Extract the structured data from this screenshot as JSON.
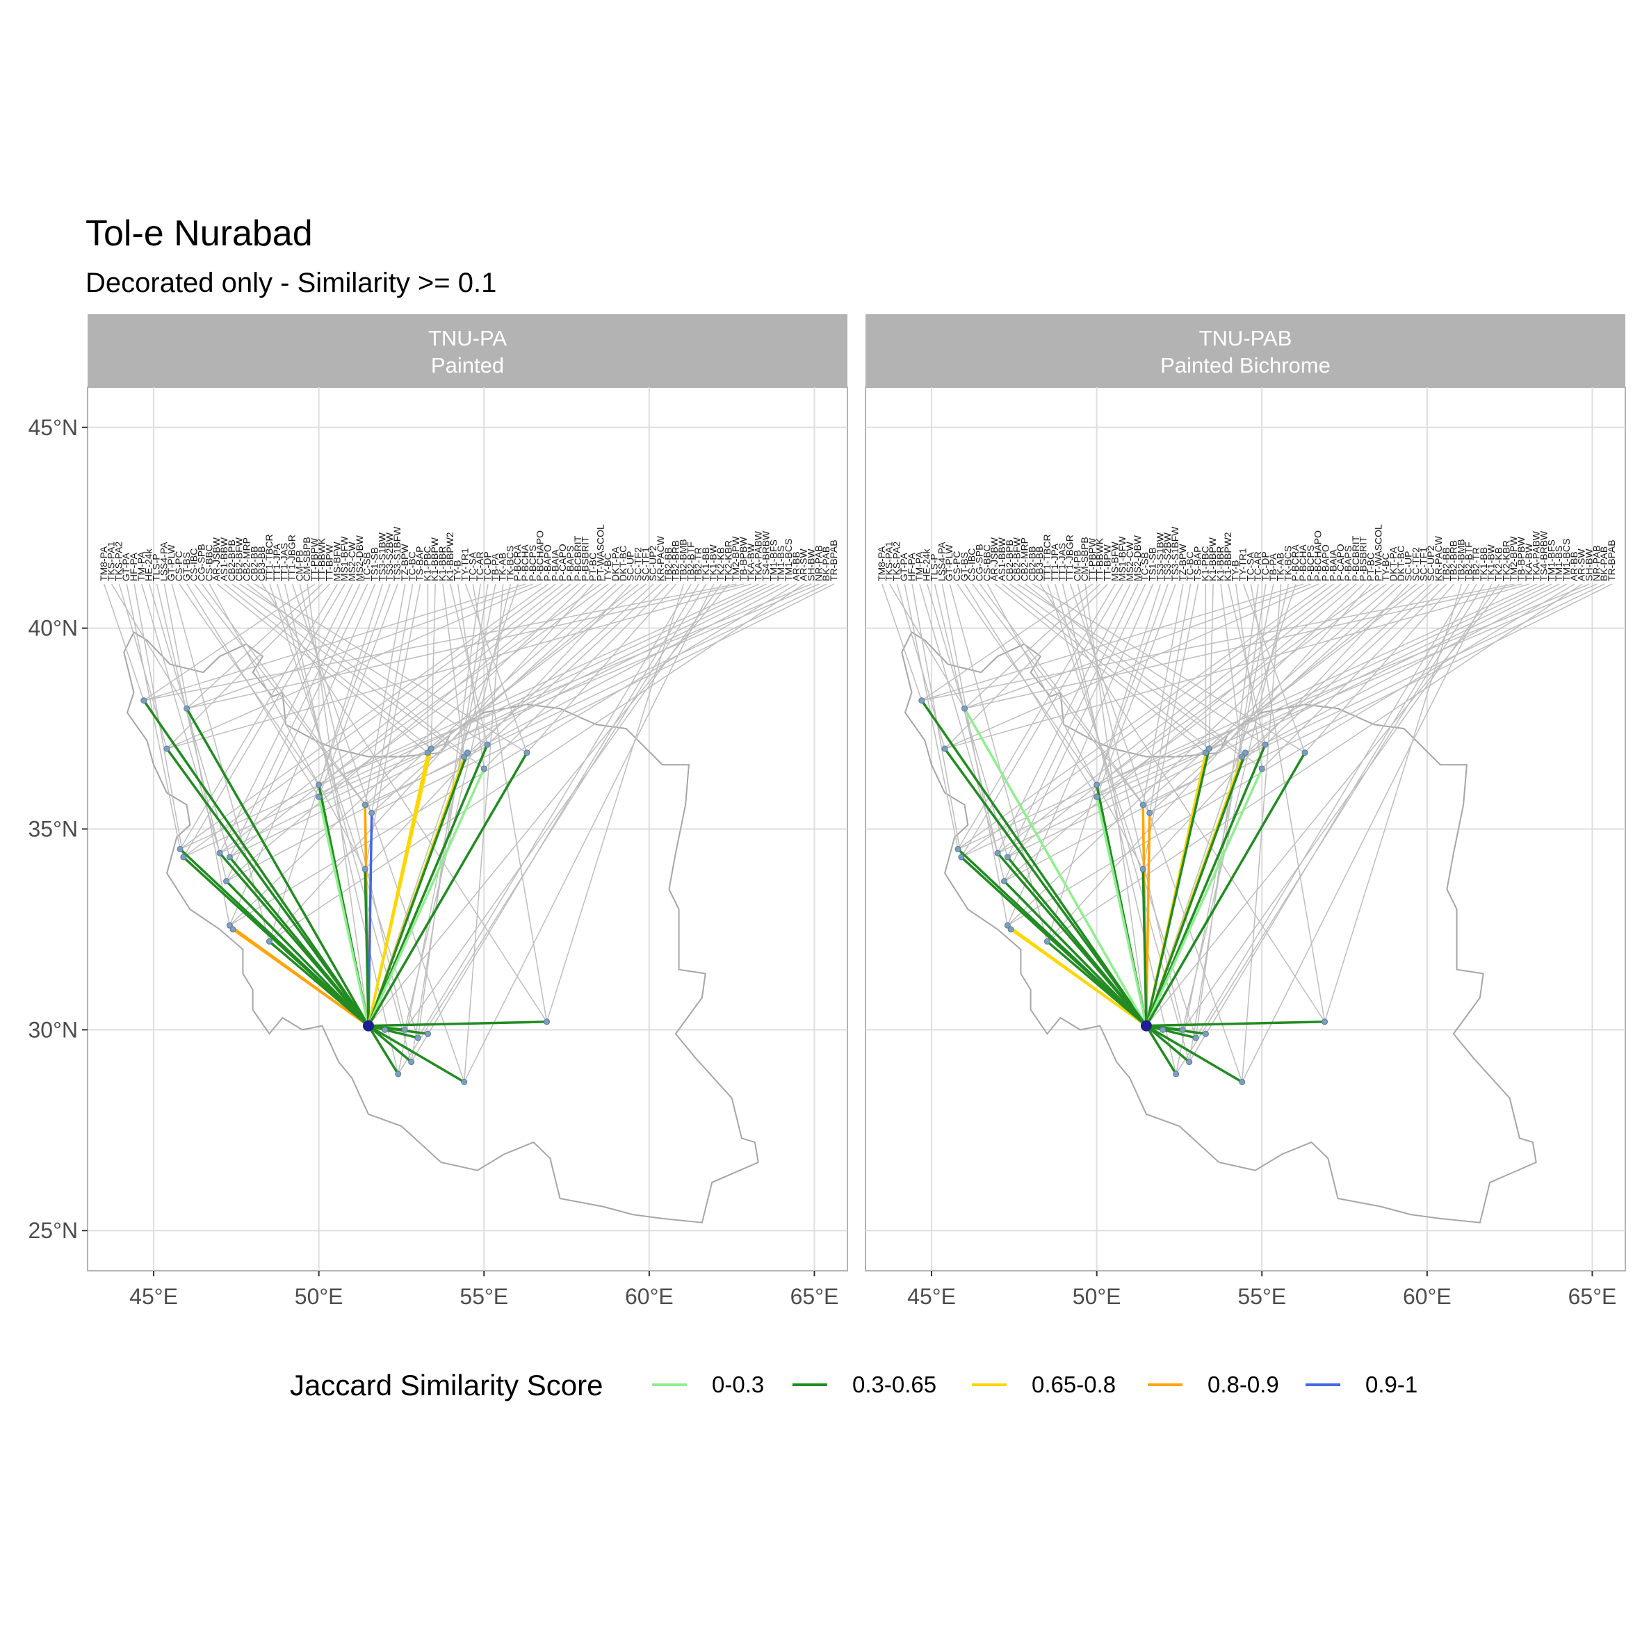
{
  "chart_data": {
    "type": "map-network",
    "title": "Tol-e Nurabad",
    "subtitle": "Decorated only - Similarity >= 0.1",
    "xlabel": "",
    "ylabel": "",
    "xlim": [
      43,
      66
    ],
    "ylim": [
      24,
      46
    ],
    "x_ticks": [
      45,
      50,
      55,
      60,
      65
    ],
    "x_tick_labels": [
      "45°E",
      "50°E",
      "55°E",
      "60°E",
      "65°E"
    ],
    "y_ticks": [
      25,
      30,
      35,
      40,
      45
    ],
    "y_tick_labels": [
      "25°N",
      "30°N",
      "35°N",
      "40°N",
      "45°N"
    ],
    "grid": true,
    "focal_site": {
      "lon": 51.5,
      "lat": 30.1
    },
    "legend": {
      "title": "Jaccard Similarity Score",
      "position": "bottom",
      "entries": [
        {
          "label": "0-0.3",
          "color": "#90EE90"
        },
        {
          "label": "0.3-0.65",
          "color": "#228B22"
        },
        {
          "label": "0.65-0.8",
          "color": "#FFD700"
        },
        {
          "label": "0.8-0.9",
          "color": "#FFA500"
        },
        {
          "label": "0.9-1",
          "color": "#4169E1"
        }
      ]
    },
    "label_line_color": "#bebebe",
    "panels": [
      {
        "strip_line1": "TNU-PA",
        "strip_line2": "Painted",
        "links": [
          {
            "lon": 44.7,
            "lat": 38.2,
            "cat": "0.3-0.65"
          },
          {
            "lon": 46.0,
            "lat": 38.0,
            "cat": "0.3-0.65"
          },
          {
            "lon": 45.4,
            "lat": 37.0,
            "cat": "0.3-0.65"
          },
          {
            "lon": 45.8,
            "lat": 34.5,
            "cat": "0.3-0.65"
          },
          {
            "lon": 45.9,
            "lat": 34.3,
            "cat": "0.3-0.65"
          },
          {
            "lon": 47.0,
            "lat": 34.4,
            "cat": "0.3-0.65"
          },
          {
            "lon": 47.3,
            "lat": 34.3,
            "cat": "0.3-0.65"
          },
          {
            "lon": 47.2,
            "lat": 33.7,
            "cat": "0.3-0.65"
          },
          {
            "lon": 47.3,
            "lat": 32.6,
            "cat": "0.8-0.9"
          },
          {
            "lon": 47.4,
            "lat": 32.5,
            "cat": "0.8-0.9"
          },
          {
            "lon": 48.5,
            "lat": 32.2,
            "cat": "0.3-0.65"
          },
          {
            "lon": 50.0,
            "lat": 36.1,
            "cat": "0.3-0.65"
          },
          {
            "lon": 50.0,
            "lat": 35.8,
            "cat": "0-0.3"
          },
          {
            "lon": 51.4,
            "lat": 35.6,
            "cat": "0.8-0.9"
          },
          {
            "lon": 51.6,
            "lat": 35.4,
            "cat": "0.9-1"
          },
          {
            "lon": 51.4,
            "lat": 34.0,
            "cat": "0.3-0.65"
          },
          {
            "lon": 53.3,
            "lat": 36.9,
            "cat": "0.65-0.8"
          },
          {
            "lon": 53.4,
            "lat": 37.0,
            "cat": "0.65-0.8"
          },
          {
            "lon": 54.4,
            "lat": 36.8,
            "cat": "0.65-0.8"
          },
          {
            "lon": 54.5,
            "lat": 36.9,
            "cat": "0.3-0.65"
          },
          {
            "lon": 55.1,
            "lat": 37.1,
            "cat": "0.3-0.65"
          },
          {
            "lon": 55.0,
            "lat": 36.5,
            "cat": "0-0.3"
          },
          {
            "lon": 56.3,
            "lat": 36.9,
            "cat": "0.3-0.65"
          },
          {
            "lon": 56.9,
            "lat": 30.2,
            "cat": "0.3-0.65"
          },
          {
            "lon": 53.0,
            "lat": 29.8,
            "cat": "0.3-0.65"
          },
          {
            "lon": 53.3,
            "lat": 29.9,
            "cat": "0.3-0.65"
          },
          {
            "lon": 52.8,
            "lat": 29.2,
            "cat": "0.3-0.65"
          },
          {
            "lon": 52.4,
            "lat": 28.9,
            "cat": "0.3-0.65"
          },
          {
            "lon": 54.4,
            "lat": 28.7,
            "cat": "0.3-0.65"
          },
          {
            "lon": 52.0,
            "lat": 30.0,
            "cat": "0.3-0.65"
          },
          {
            "lon": 52.6,
            "lat": 30.0,
            "cat": "0.3-0.65"
          }
        ]
      },
      {
        "strip_line1": "TNU-PAB",
        "strip_line2": "Painted Bichrome",
        "links": [
          {
            "lon": 44.7,
            "lat": 38.2,
            "cat": "0.3-0.65"
          },
          {
            "lon": 46.0,
            "lat": 38.0,
            "cat": "0-0.3"
          },
          {
            "lon": 45.4,
            "lat": 37.0,
            "cat": "0.3-0.65"
          },
          {
            "lon": 45.8,
            "lat": 34.5,
            "cat": "0.3-0.65"
          },
          {
            "lon": 45.9,
            "lat": 34.3,
            "cat": "0.3-0.65"
          },
          {
            "lon": 47.0,
            "lat": 34.4,
            "cat": "0.3-0.65"
          },
          {
            "lon": 47.3,
            "lat": 34.3,
            "cat": "0.3-0.65"
          },
          {
            "lon": 47.2,
            "lat": 33.7,
            "cat": "0.3-0.65"
          },
          {
            "lon": 47.3,
            "lat": 32.6,
            "cat": "0.65-0.8"
          },
          {
            "lon": 47.4,
            "lat": 32.5,
            "cat": "0.65-0.8"
          },
          {
            "lon": 48.5,
            "lat": 32.2,
            "cat": "0.3-0.65"
          },
          {
            "lon": 50.0,
            "lat": 36.1,
            "cat": "0.3-0.65"
          },
          {
            "lon": 50.0,
            "lat": 35.8,
            "cat": "0-0.3"
          },
          {
            "lon": 51.4,
            "lat": 35.6,
            "cat": "0.8-0.9"
          },
          {
            "lon": 51.6,
            "lat": 35.4,
            "cat": "0.8-0.9"
          },
          {
            "lon": 51.4,
            "lat": 34.0,
            "cat": "0.3-0.65"
          },
          {
            "lon": 53.3,
            "lat": 36.9,
            "cat": "0.65-0.8"
          },
          {
            "lon": 53.4,
            "lat": 37.0,
            "cat": "0.3-0.65"
          },
          {
            "lon": 54.4,
            "lat": 36.8,
            "cat": "0.65-0.8"
          },
          {
            "lon": 54.5,
            "lat": 36.9,
            "cat": "0.3-0.65"
          },
          {
            "lon": 55.1,
            "lat": 37.1,
            "cat": "0.3-0.65"
          },
          {
            "lon": 55.0,
            "lat": 36.5,
            "cat": "0-0.3"
          },
          {
            "lon": 56.3,
            "lat": 36.9,
            "cat": "0.3-0.65"
          },
          {
            "lon": 56.9,
            "lat": 30.2,
            "cat": "0.3-0.65"
          },
          {
            "lon": 53.0,
            "lat": 29.8,
            "cat": "0.3-0.65"
          },
          {
            "lon": 53.3,
            "lat": 29.9,
            "cat": "0.3-0.65"
          },
          {
            "lon": 52.8,
            "lat": 29.2,
            "cat": "0.3-0.65"
          },
          {
            "lon": 52.4,
            "lat": 28.9,
            "cat": "0.3-0.65"
          },
          {
            "lon": 54.4,
            "lat": 28.7,
            "cat": "0.3-0.65"
          },
          {
            "lon": 52.0,
            "lat": 30.0,
            "cat": "0.3-0.65"
          },
          {
            "lon": 52.6,
            "lat": 30.0,
            "cat": "0.3-0.65"
          }
        ]
      }
    ],
    "site_labels_panel1": [
      "TM8-PA",
      "TKS-PA1",
      "TKS-PA2",
      "GT-PA",
      "HF-PA",
      "TM-PA",
      "HE-24k",
      "TLS-P",
      "LSS4-PA",
      "GT-PLW",
      "CS-PC",
      "GT-BS",
      "CS-IBC",
      "CG-SPB",
      "CS-BBC",
      "AR-JSBW",
      "AS1-BBW",
      "CB2-BPB",
      "CB2-BFW",
      "CB2-MRP",
      "CB2-BB",
      "CB3-BB",
      "TT1-TBCR",
      "TT1-JPA",
      "TT1-JAS",
      "TT1-JBGR",
      "CM-PB",
      "CM-SBPB",
      "TT-PBPW",
      "TT-BBWK",
      "TT-BPW",
      "MS-BFW",
      "MS1-BFW",
      "MS2-CW",
      "MS2-DBW",
      "TC-SB",
      "TS1-SB",
      "TS3-S1BW",
      "TS3-S2BW",
      "TS3-S1BFW",
      "TZ-BPW",
      "TC-BC",
      "TS-BAP",
      "K1-PBC",
      "K1-BBPW",
      "K1-BBR",
      "K1-BBPW2",
      "TY-B",
      "TY-TR1",
      "TC-SA",
      "TC-AR",
      "TC-DP",
      "TB-PA",
      "TK-AB",
      "TK-BCS",
      "P-BCRA",
      "P-BCHA",
      "P-BCPS",
      "P-BCHAPO",
      "P-BAPO",
      "P-BAIA",
      "P-CAPO",
      "P-BAPS",
      "P-BCBRIT",
      "P-BSBRIT",
      "PT-BC",
      "PT-WASCOL",
      "TY-BC",
      "DKT-PA",
      "DKT-BC",
      "SC-UP",
      "SC-TF2",
      "SC-TF1",
      "SC-UP2",
      "KR-PACW",
      "TB2-BB",
      "TB2-BRB",
      "TB2-BMB",
      "TB2-BTF",
      "TB2-TR",
      "TK1-BB",
      "TK1-BW",
      "TK2-KB",
      "TK2-KBR",
      "TM2-BPW",
      "TB-BPBW",
      "TKA-BW",
      "TKA-PABW",
      "TS4-BRBW",
      "TM1-BFS",
      "TM1-BS",
      "TM1-BCS",
      "AR-BB",
      "AR-SW",
      "SH-BW",
      "NR-PAB",
      "BK-PAB",
      "TR-BPAB"
    ],
    "site_labels_panel2": [
      "TM8-PA",
      "TKS-PA1",
      "TKS-PA2",
      "GT-PA",
      "HF-PA",
      "TM-PA",
      "HE-24k",
      "TLS-P",
      "LSS4-PA",
      "GT-PLW",
      "CS-PC",
      "GT-BS",
      "CS-IBC",
      "CG-SPB",
      "CS-BBC",
      "AR-JSBW",
      "AS1-BBW",
      "CB2-BPB",
      "CB2-BFW",
      "CB2-MRP",
      "CB2-BB",
      "CB3-BB",
      "TT1-TBCR",
      "TT1-JPA",
      "TT1-JAS",
      "TT1-JBGR",
      "CM-PB",
      "CM-SBPB",
      "TT-PBPW",
      "TT-BBWK",
      "TT-BPW",
      "MS-BFW",
      "MS1-BFW",
      "MS2-CW",
      "MS2-DBW",
      "TC-SB",
      "TS1-SB",
      "TS3-S1BW",
      "TS3-S2BW",
      "TS3-S1BFW",
      "TZ-BPW",
      "TC-BC",
      "TS-BAP",
      "K1-PBC",
      "K1-BBPW",
      "K1-BBR",
      "K1-BBPW2",
      "TY-B",
      "TY-TR1",
      "TC-SA",
      "TC-AR",
      "TC-DP",
      "TB-PA",
      "TK-AB",
      "TK-BCS",
      "P-BCRA",
      "P-BCHA",
      "P-BCPS",
      "P-BCHAPO",
      "P-BAPO",
      "P-BAIA",
      "P-CAPO",
      "P-BAPS",
      "P-BCBRIT",
      "P-BSBRIT",
      "PT-BC",
      "PT-WASCOL",
      "TY-BC",
      "DKT-PA",
      "DKT-BC",
      "SC-UP",
      "SC-TF2",
      "SC-TF1",
      "SC-UP2",
      "KR-PACW",
      "TB2-BB",
      "TB2-BRB",
      "TB2-BMB",
      "TB2-BTF",
      "TB2-TR",
      "TK1-BB",
      "TK1-BW",
      "TK2-KB",
      "TK2-KBR",
      "TM2-BPW",
      "TB-BPBW",
      "TKA-BW",
      "TKA-PABW",
      "TS4-BRBW",
      "TM1-BFS",
      "TM1-BS",
      "TM1-BCS",
      "AR-BB",
      "AR-SW",
      "SH-BW",
      "NR-PAB",
      "BK-PAB",
      "TR-BPAB"
    ],
    "label_sites": [
      {
        "lon": 44.7,
        "lat": 38.2
      },
      {
        "lon": 46.0,
        "lat": 38.0
      },
      {
        "lon": 45.4,
        "lat": 37.0
      },
      {
        "lon": 45.8,
        "lat": 34.5
      },
      {
        "lon": 45.9,
        "lat": 34.3
      },
      {
        "lon": 47.0,
        "lat": 34.4
      },
      {
        "lon": 47.3,
        "lat": 34.3
      },
      {
        "lon": 47.2,
        "lat": 33.7
      },
      {
        "lon": 47.3,
        "lat": 32.6
      },
      {
        "lon": 48.5,
        "lat": 32.2
      },
      {
        "lon": 50.0,
        "lat": 36.1
      },
      {
        "lon": 50.0,
        "lat": 35.8
      },
      {
        "lon": 51.4,
        "lat": 35.6
      },
      {
        "lon": 51.6,
        "lat": 35.4
      },
      {
        "lon": 51.4,
        "lat": 34.0
      },
      {
        "lon": 53.3,
        "lat": 36.9
      },
      {
        "lon": 53.4,
        "lat": 37.0
      },
      {
        "lon": 54.4,
        "lat": 36.8
      },
      {
        "lon": 55.1,
        "lat": 37.1
      },
      {
        "lon": 55.0,
        "lat": 36.5
      },
      {
        "lon": 56.3,
        "lat": 36.9
      },
      {
        "lon": 56.9,
        "lat": 30.2
      },
      {
        "lon": 53.0,
        "lat": 29.8
      },
      {
        "lon": 52.8,
        "lat": 29.2
      },
      {
        "lon": 52.4,
        "lat": 28.9
      },
      {
        "lon": 54.4,
        "lat": 28.7
      },
      {
        "lon": 52.6,
        "lat": 30.0
      },
      {
        "lon": 51.5,
        "lat": 30.1
      }
    ],
    "outline_lonlat": [
      [
        44.1,
        39.4
      ],
      [
        44.4,
        39.9
      ],
      [
        44.8,
        39.7
      ],
      [
        45.5,
        39.1
      ],
      [
        46.5,
        38.9
      ],
      [
        47.0,
        39.3
      ],
      [
        47.8,
        39.6
      ],
      [
        48.3,
        39.3
      ],
      [
        48.0,
        38.9
      ],
      [
        48.6,
        38.3
      ],
      [
        48.9,
        38.4
      ],
      [
        49.0,
        37.6
      ],
      [
        49.9,
        37.2
      ],
      [
        50.5,
        37.0
      ],
      [
        51.5,
        36.8
      ],
      [
        52.5,
        36.8
      ],
      [
        53.7,
        36.9
      ],
      [
        54.0,
        37.4
      ],
      [
        55.0,
        37.9
      ],
      [
        56.3,
        38.1
      ],
      [
        57.3,
        38.0
      ],
      [
        58.4,
        37.6
      ],
      [
        59.3,
        37.5
      ],
      [
        60.4,
        36.6
      ],
      [
        61.2,
        36.6
      ],
      [
        61.1,
        35.6
      ],
      [
        60.8,
        34.4
      ],
      [
        60.6,
        33.5
      ],
      [
        60.9,
        33.0
      ],
      [
        60.9,
        31.5
      ],
      [
        61.7,
        31.4
      ],
      [
        61.6,
        30.8
      ],
      [
        60.8,
        29.9
      ],
      [
        61.4,
        29.3
      ],
      [
        62.5,
        28.3
      ],
      [
        62.8,
        27.3
      ],
      [
        63.2,
        27.2
      ],
      [
        63.3,
        26.7
      ],
      [
        61.9,
        26.2
      ],
      [
        61.6,
        25.2
      ],
      [
        60.4,
        25.3
      ],
      [
        59.5,
        25.4
      ],
      [
        58.6,
        25.6
      ],
      [
        57.3,
        25.8
      ],
      [
        57.0,
        26.8
      ],
      [
        56.5,
        27.2
      ],
      [
        55.6,
        26.9
      ],
      [
        54.8,
        26.5
      ],
      [
        53.7,
        26.7
      ],
      [
        52.5,
        27.6
      ],
      [
        51.5,
        27.9
      ],
      [
        51.0,
        28.8
      ],
      [
        50.6,
        29.2
      ],
      [
        50.1,
        30.1
      ],
      [
        49.5,
        30.0
      ],
      [
        48.9,
        30.3
      ],
      [
        48.5,
        29.9
      ],
      [
        48.0,
        30.5
      ],
      [
        48.0,
        31.0
      ],
      [
        47.7,
        31.4
      ],
      [
        47.7,
        32.0
      ],
      [
        47.0,
        32.5
      ],
      [
        46.1,
        33.0
      ],
      [
        45.4,
        33.9
      ],
      [
        45.7,
        34.8
      ],
      [
        46.1,
        35.1
      ],
      [
        46.0,
        35.6
      ],
      [
        45.4,
        35.9
      ],
      [
        45.0,
        36.6
      ],
      [
        44.8,
        37.2
      ],
      [
        44.2,
        37.9
      ],
      [
        44.4,
        38.4
      ],
      [
        44.1,
        39.4
      ]
    ]
  }
}
